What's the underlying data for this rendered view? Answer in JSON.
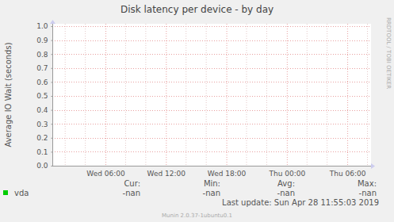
{
  "chart_data": {
    "type": "line",
    "title": "Disk latency per device - by day",
    "ylabel": "Average IO Wait (seconds)",
    "categories": [
      null,
      null,
      null,
      null,
      null,
      "Wed 06:00",
      null,
      null,
      null,
      null,
      null,
      "Wed 12:00",
      null,
      null,
      null,
      null,
      null,
      "Wed 18:00",
      null,
      null,
      null,
      null,
      null,
      "Thu 00:00",
      null,
      null,
      null,
      null,
      null,
      "Thu 06:00",
      null,
      null
    ],
    "series": [
      {
        "name": "vda",
        "color": "#00cc00",
        "values": [
          null,
          null,
          null,
          null,
          null,
          null,
          null,
          null,
          null,
          null,
          null,
          null,
          null,
          null,
          null,
          null,
          null,
          null,
          null,
          null,
          null,
          null,
          null,
          null,
          null,
          null,
          null,
          null,
          null,
          null,
          null,
          null
        ],
        "stats": [
          "-nan",
          "-nan",
          "-nan",
          "-nan"
        ]
      }
    ],
    "stat_headers": [
      "Cur:",
      "Min:",
      "Avg:",
      "Max:"
    ],
    "ylim": [
      0,
      1
    ],
    "yticks": [
      {
        "value": 0,
        "label": "0.0"
      },
      0.1,
      0.2,
      0.3,
      0.4,
      {
        "value": 0.5,
        "label": "0.5"
      },
      0.6,
      0.7,
      0.8,
      0.9,
      {
        "value": 1,
        "label": "1.0"
      }
    ],
    "grid": true,
    "legend": "bottom",
    "footer": "Last update: Sun Apr 28 11:55:03 2019",
    "credit": "Munin 2.0.37-1ubuntu0.1",
    "watermark": "RRDTOOL / TOBI OETIKER"
  }
}
